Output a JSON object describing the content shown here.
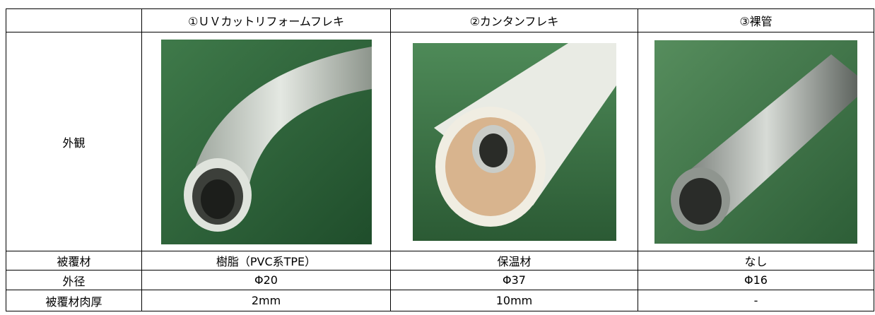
{
  "table": {
    "columns": [
      "①ＵＶカットリフォームフレキ",
      "②カンタンフレキ",
      "③裸管"
    ],
    "rows": [
      {
        "label": "外観"
      },
      {
        "label": "被覆材",
        "cells": [
          "樹脂（PVC系TPE）",
          "保温材",
          "なし"
        ]
      },
      {
        "label": "外径",
        "cells": [
          "Φ20",
          "Φ37",
          "Φ16"
        ]
      },
      {
        "label": "被覆材肉厚",
        "cells": [
          "2mm",
          "10mm",
          "-"
        ]
      }
    ]
  }
}
